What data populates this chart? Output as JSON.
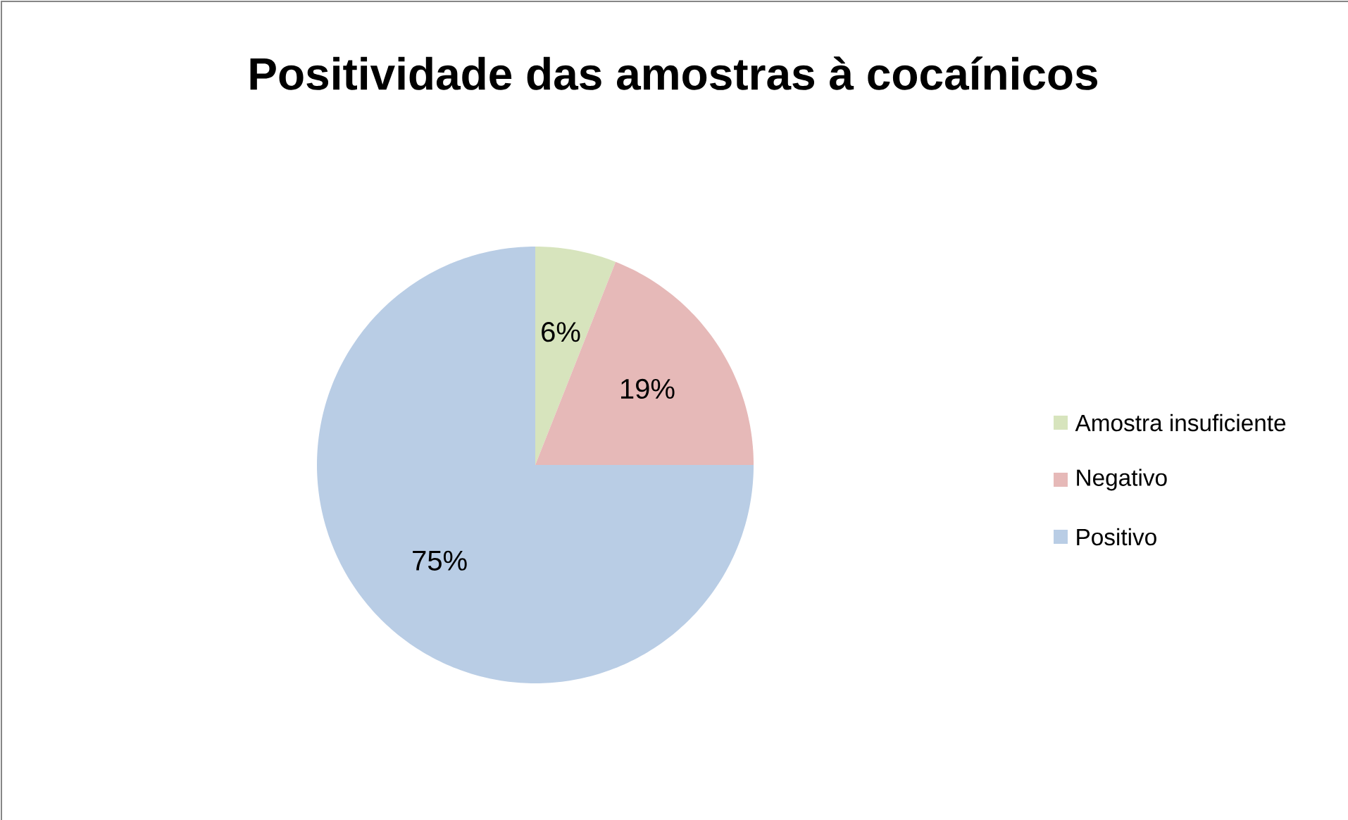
{
  "chart_data": {
    "type": "pie",
    "title": "Positividade das amostras à cocaínicos",
    "categories": [
      "Amostra insuficiente",
      "Negativo",
      "Positivo"
    ],
    "values": [
      6,
      19,
      75
    ],
    "colors": [
      "#d7e4bd",
      "#e6b9b8",
      "#b9cde5"
    ],
    "value_labels": [
      "6%",
      "19%",
      "75%"
    ],
    "legend": "right"
  }
}
